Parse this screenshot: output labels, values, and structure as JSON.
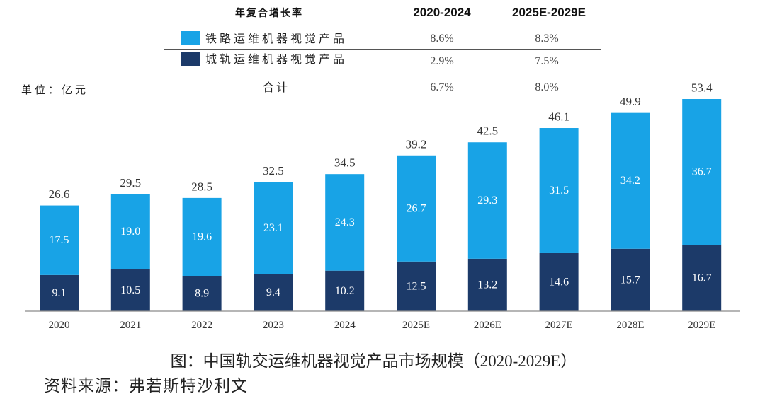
{
  "cagr_table": {
    "header": {
      "label": "年复合增长率",
      "period1": "2020-2024",
      "period2": "2025E-2029E"
    },
    "rows": [
      {
        "period1": "8.6%",
        "period2": "8.3%"
      },
      {
        "period1": "2.9%",
        "period2": "7.5%"
      },
      {
        "label": "合计",
        "period1": "6.7%",
        "period2": "8.0%"
      }
    ]
  },
  "unit_label": "单位：亿元",
  "chart_data": {
    "type": "bar",
    "stacked": true,
    "categories": [
      "2020",
      "2021",
      "2022",
      "2023",
      "2024",
      "2025E",
      "2026E",
      "2027E",
      "2028E",
      "2029E"
    ],
    "series": [
      {
        "name": "铁路运维机器视觉产品",
        "color": "#18A3E6",
        "values": [
          17.5,
          19.0,
          19.6,
          23.1,
          24.3,
          26.7,
          29.3,
          31.5,
          34.2,
          36.7
        ]
      },
      {
        "name": "城轨运维机器视觉产品",
        "color": "#1C3A69",
        "values": [
          9.1,
          10.5,
          8.9,
          9.4,
          10.2,
          12.5,
          13.2,
          14.6,
          15.7,
          16.7
        ]
      }
    ],
    "totals": [
      26.6,
      29.5,
      28.5,
      32.5,
      34.5,
      39.2,
      42.5,
      46.1,
      49.9,
      53.4
    ],
    "xlabel": "",
    "ylabel": "",
    "grid": false,
    "legend": "top"
  },
  "caption": "图：中国轨交运维机器视觉产品市场规模（2020-2029E）",
  "source": "资料来源：弗若斯特沙利文"
}
